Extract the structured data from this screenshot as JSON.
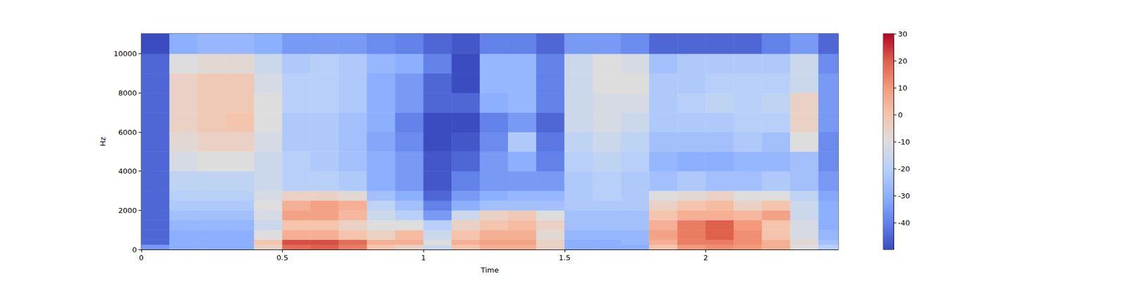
{
  "chart_data": {
    "type": "heatmap",
    "x_label": "Time",
    "y_label": "Hz",
    "xlim": [
      0,
      2.47
    ],
    "xticks": [
      0,
      0.5,
      1,
      1.5,
      2
    ],
    "ylim": [
      0,
      11025
    ],
    "yticks": [
      0,
      2000,
      4000,
      6000,
      8000,
      10000
    ],
    "grid": false,
    "time_edges": [
      0,
      0.1,
      0.2,
      0.3,
      0.4,
      0.5,
      0.6,
      0.7,
      0.8,
      0.9,
      1.0,
      1.1,
      1.2,
      1.3,
      1.4,
      1.5,
      1.6,
      1.7,
      1.8,
      1.9,
      2.0,
      2.1,
      2.2,
      2.3,
      2.4,
      2.47
    ],
    "freq_edges": [
      0,
      250,
      500,
      1000,
      1500,
      2000,
      2500,
      3000,
      4000,
      5000,
      6000,
      7000,
      8000,
      9000,
      10000,
      11025
    ],
    "cells": [
      [
        -35,
        -30,
        -30,
        -30,
        -5,
        18,
        20,
        15,
        0,
        -5,
        -15,
        0,
        5,
        5,
        -5,
        -30,
        -30,
        -30,
        0,
        10,
        12,
        10,
        5,
        -10,
        -20
      ],
      [
        -45,
        -30,
        -30,
        -30,
        0,
        22,
        22,
        18,
        5,
        5,
        -10,
        5,
        8,
        8,
        -5,
        -30,
        -30,
        -28,
        5,
        15,
        15,
        12,
        5,
        -8,
        -25
      ],
      [
        -45,
        -30,
        -30,
        -30,
        -10,
        5,
        5,
        0,
        -5,
        2,
        -15,
        0,
        5,
        5,
        -8,
        -28,
        -28,
        -28,
        8,
        15,
        20,
        12,
        0,
        -12,
        -28
      ],
      [
        -45,
        -28,
        -28,
        -28,
        -15,
        0,
        0,
        -5,
        -10,
        -10,
        -20,
        -5,
        0,
        2,
        -5,
        -25,
        -25,
        -25,
        5,
        15,
        20,
        10,
        0,
        -12,
        -30
      ],
      [
        -45,
        -25,
        -25,
        -25,
        -12,
        8,
        8,
        3,
        -15,
        -20,
        -35,
        -15,
        -5,
        -2,
        -10,
        -25,
        -25,
        -25,
        0,
        5,
        5,
        3,
        8,
        -15,
        -30
      ],
      [
        -45,
        -22,
        -22,
        -22,
        -10,
        5,
        8,
        5,
        -18,
        -25,
        -40,
        -30,
        -25,
        -25,
        -25,
        -22,
        -22,
        -22,
        -5,
        0,
        2,
        -5,
        0,
        -15,
        -30
      ],
      [
        -45,
        -20,
        -20,
        -20,
        -12,
        -5,
        -5,
        -8,
        -25,
        -30,
        -45,
        -35,
        -30,
        -28,
        -28,
        -22,
        -20,
        -22,
        -10,
        -8,
        -5,
        -10,
        -10,
        -18,
        -32
      ],
      [
        -45,
        -18,
        -18,
        -18,
        -15,
        -20,
        -20,
        -22,
        -30,
        -35,
        -48,
        -40,
        -35,
        -35,
        -35,
        -22,
        -20,
        -22,
        -25,
        -22,
        -25,
        -25,
        -22,
        -25,
        -35
      ],
      [
        -45,
        -12,
        -10,
        -10,
        -15,
        -20,
        -22,
        -25,
        -30,
        -35,
        -48,
        -45,
        -35,
        -30,
        -40,
        -20,
        -18,
        -20,
        -28,
        -30,
        -30,
        -28,
        -28,
        -25,
        -38
      ],
      [
        -45,
        -8,
        -5,
        -5,
        -12,
        -22,
        -22,
        -25,
        -32,
        -38,
        -50,
        -48,
        -38,
        -22,
        -42,
        -18,
        -15,
        -18,
        -25,
        -25,
        -25,
        -22,
        -25,
        -10,
        -38
      ],
      [
        -45,
        -5,
        -2,
        0,
        -10,
        -22,
        -22,
        -25,
        -30,
        -40,
        -50,
        -50,
        -40,
        -35,
        -45,
        -15,
        -12,
        -15,
        -22,
        -22,
        -22,
        -20,
        -20,
        -5,
        -35
      ],
      [
        -45,
        -5,
        -2,
        -2,
        -10,
        -20,
        -20,
        -22,
        -30,
        -35,
        -45,
        -45,
        -30,
        -28,
        -40,
        -15,
        -12,
        -12,
        -22,
        -20,
        -18,
        -20,
        -18,
        -5,
        -35
      ],
      [
        -45,
        -5,
        -2,
        -2,
        -12,
        -20,
        -20,
        -22,
        -30,
        -35,
        -45,
        -50,
        -28,
        -28,
        -40,
        -15,
        -10,
        -10,
        -22,
        -22,
        -20,
        -20,
        -20,
        -15,
        -35
      ],
      [
        -45,
        -10,
        -8,
        -8,
        -15,
        -22,
        -20,
        -22,
        -28,
        -30,
        -40,
        -50,
        -28,
        -28,
        -40,
        -15,
        -10,
        -12,
        -25,
        -22,
        -22,
        -22,
        -22,
        -15,
        -38
      ],
      [
        -50,
        -30,
        -28,
        -28,
        -30,
        -35,
        -35,
        -35,
        -38,
        -40,
        -45,
        -48,
        -40,
        -40,
        -45,
        -35,
        -35,
        -38,
        -45,
        -45,
        -45,
        -45,
        -40,
        -35,
        -45
      ]
    ],
    "colorbar": {
      "range": [
        -50,
        30
      ],
      "ticks": [
        -40,
        -30,
        -20,
        -10,
        0,
        10,
        20,
        30
      ]
    }
  }
}
